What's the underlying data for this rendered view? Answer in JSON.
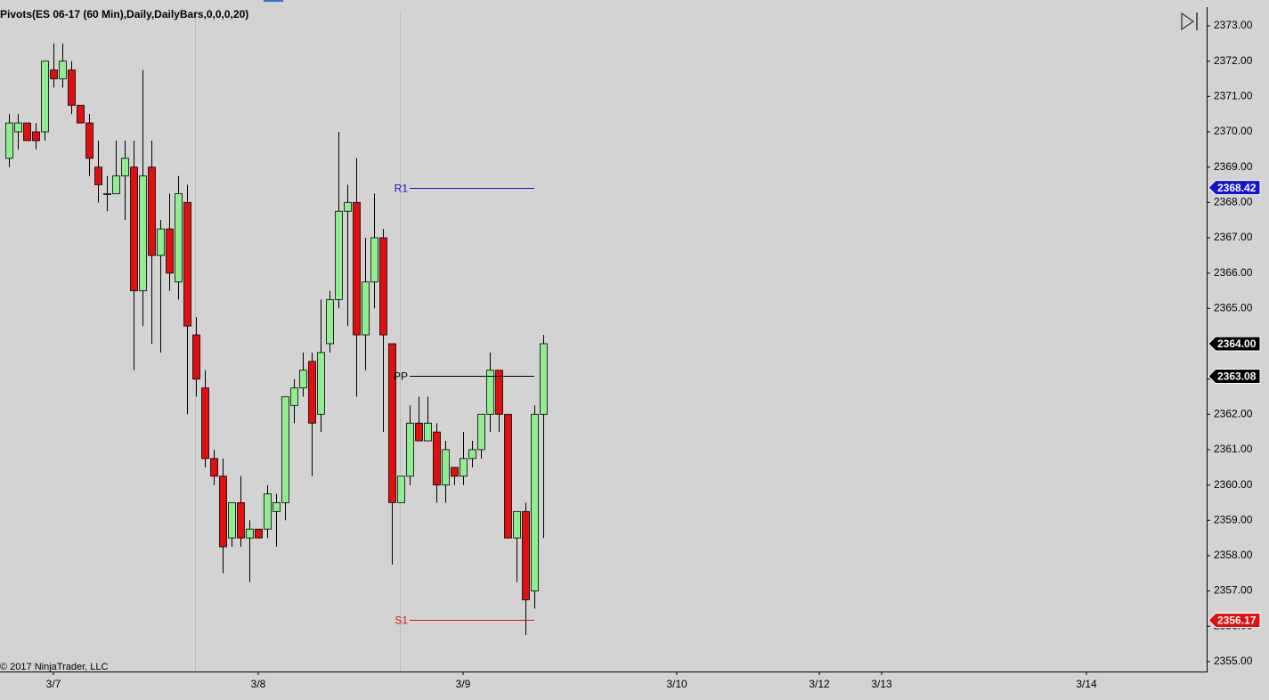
{
  "chart_data": {
    "type": "candlestick",
    "title": "Pivots(ES 06-17 (60 Min),Daily,DailyBars,0,0,0,20)",
    "annotation": "© 2017 NinjaTrader, LLC",
    "up_color": "#90ee90",
    "down_color": "#e01010",
    "candles": {
      "open": [
        2369.25,
        2370.0,
        2370.25,
        2370.0,
        2370.0,
        2371.75,
        2371.5,
        2371.75,
        2370.75,
        2370.25,
        2369.0,
        2368.25,
        2368.25,
        2368.75,
        2369.0,
        2365.5,
        2369.0,
        2366.5,
        2367.25,
        2365.75,
        2368.0,
        2364.25,
        2362.75,
        2360.75,
        2360.25,
        2358.5,
        2359.5,
        2358.5,
        2358.75,
        2358.75,
        2359.25,
        2359.5,
        2362.25,
        2362.75,
        2363.5,
        2362.0,
        2364.0,
        2365.25,
        2367.75,
        2368.0,
        2364.25,
        2365.75,
        2367.0,
        2364.0,
        2359.5,
        2360.25,
        2361.75,
        2361.25,
        2361.5,
        2360.0,
        2360.5,
        2360.25,
        2360.75,
        2361.0,
        2362.0,
        2363.25,
        2362.0,
        2358.5,
        2359.25,
        2357.0,
        2362.0
      ],
      "high": [
        2370.5,
        2370.5,
        2370.25,
        2370.25,
        2372.0,
        2372.5,
        2372.5,
        2372.0,
        2370.75,
        2370.5,
        2369.75,
        2368.75,
        2369.75,
        2369.75,
        2369.75,
        2371.75,
        2369.75,
        2367.5,
        2368.25,
        2368.75,
        2368.5,
        2364.75,
        2363.25,
        2361.0,
        2360.75,
        2359.5,
        2360.25,
        2359.0,
        2358.75,
        2360.0,
        2359.75,
        2362.5,
        2363.0,
        2363.75,
        2363.75,
        2365.25,
        2365.5,
        2370.0,
        2368.5,
        2369.25,
        2367.0,
        2368.25,
        2367.25,
        2364.0,
        2360.25,
        2362.25,
        2362.5,
        2362.5,
        2361.75,
        2361.25,
        2360.5,
        2361.5,
        2361.25,
        2362.0,
        2363.75,
        2363.25,
        2362.0,
        2359.25,
        2359.5,
        2362.25,
        2364.25
      ],
      "low": [
        2369.0,
        2369.5,
        2369.75,
        2369.5,
        2369.75,
        2371.25,
        2371.25,
        2370.5,
        2370.25,
        2368.75,
        2368.0,
        2367.75,
        2368.25,
        2367.5,
        2363.25,
        2364.5,
        2364.0,
        2363.75,
        2365.5,
        2365.25,
        2362.0,
        2362.5,
        2360.5,
        2360.0,
        2357.5,
        2358.25,
        2358.25,
        2357.25,
        2358.5,
        2358.5,
        2358.25,
        2359.0,
        2361.75,
        2362.5,
        2360.25,
        2361.5,
        2363.75,
        2365.0,
        2364.5,
        2362.5,
        2363.25,
        2365.0,
        2361.5,
        2357.75,
        2359.5,
        2360.0,
        2361.25,
        2361.25,
        2359.5,
        2359.5,
        2360.0,
        2360.0,
        2360.5,
        2360.75,
        2361.5,
        2361.5,
        2358.5,
        2357.25,
        2355.75,
        2356.5,
        2358.5
      ],
      "close": [
        2370.25,
        2370.25,
        2369.75,
        2369.75,
        2372.0,
        2371.5,
        2372.0,
        2370.75,
        2370.25,
        2369.25,
        2368.5,
        2368.25,
        2368.75,
        2369.25,
        2365.5,
        2368.75,
        2366.5,
        2367.25,
        2366.0,
        2368.25,
        2364.5,
        2363.0,
        2360.75,
        2360.25,
        2358.25,
        2359.5,
        2358.5,
        2358.75,
        2358.5,
        2359.75,
        2359.5,
        2362.5,
        2362.75,
        2363.25,
        2361.75,
        2363.75,
        2365.25,
        2367.75,
        2368.0,
        2364.25,
        2365.75,
        2367.0,
        2364.25,
        2359.5,
        2360.25,
        2361.75,
        2361.25,
        2361.75,
        2360.0,
        2361.0,
        2360.25,
        2360.75,
        2361.0,
        2362.0,
        2363.25,
        2362.0,
        2358.5,
        2359.25,
        2356.75,
        2362.0,
        2364.0
      ]
    },
    "pivots": [
      {
        "name": "R1",
        "value": 2368.42,
        "color": "#1414d2",
        "x_range": [
          45,
          59
        ]
      },
      {
        "name": "PP",
        "value": 2363.08,
        "color": "#000000",
        "x_range": [
          45,
          59
        ]
      },
      {
        "name": "S1",
        "value": 2356.17,
        "color": "#e01010",
        "x_range": [
          45,
          59
        ]
      }
    ],
    "last_price": {
      "value": 2364,
      "label": "2364.00",
      "color": "#000000"
    },
    "xlim": [
      -1,
      134.5
    ],
    "xticks": [
      {
        "value": 5,
        "label": "3/7"
      },
      {
        "value": 28,
        "label": "3/8"
      },
      {
        "value": 51,
        "label": "3/9"
      },
      {
        "value": 75,
        "label": "3/10"
      },
      {
        "value": 91,
        "label": "3/12"
      },
      {
        "value": 98,
        "label": "3/13"
      },
      {
        "value": 121,
        "label": "3/14"
      }
    ],
    "ylim": [
      2354.72,
      2373.53
    ],
    "yticks": [
      {
        "value": 2355,
        "label": "2355.00"
      },
      {
        "value": 2356,
        "label": "2356.00"
      },
      {
        "value": 2357,
        "label": "2357.00"
      },
      {
        "value": 2358,
        "label": "2358.00"
      },
      {
        "value": 2359,
        "label": "2359.00"
      },
      {
        "value": 2360,
        "label": "2360.00"
      },
      {
        "value": 2361,
        "label": "2361.00"
      },
      {
        "value": 2362,
        "label": "2362.00"
      },
      {
        "value": 2363,
        "label": "2363.00"
      },
      {
        "value": 2364,
        "label": "2364.00"
      },
      {
        "value": 2365,
        "label": "2365.00"
      },
      {
        "value": 2366,
        "label": "2366.00"
      },
      {
        "value": 2367,
        "label": "2367.00"
      },
      {
        "value": 2368,
        "label": "2368.00"
      },
      {
        "value": 2369,
        "label": "2369.00"
      },
      {
        "value": 2370,
        "label": "2370.00"
      },
      {
        "value": 2371,
        "label": "2371.00"
      },
      {
        "value": 2372,
        "label": "2372.00"
      },
      {
        "value": 2373,
        "label": "2373.00"
      }
    ]
  }
}
